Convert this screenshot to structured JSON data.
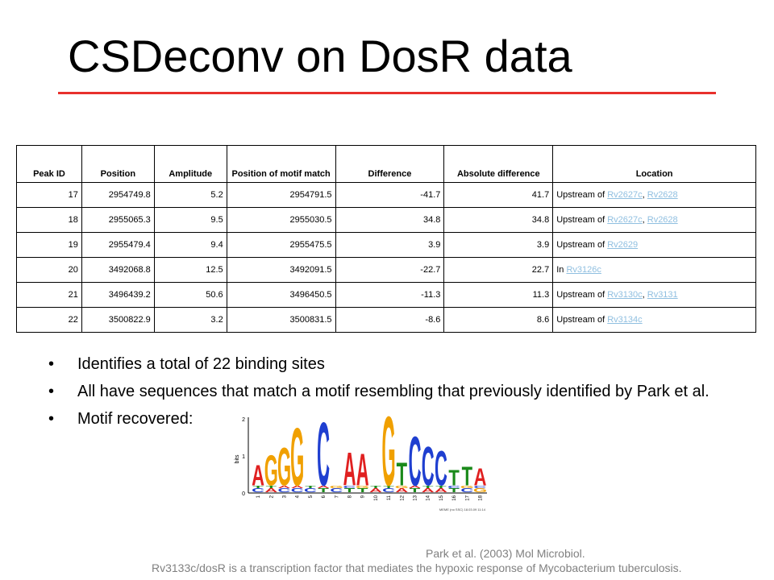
{
  "slide": {
    "title": "CSDeconv on DosR data"
  },
  "table": {
    "headers": [
      "Peak ID",
      "Position",
      "Amplitude",
      "Position of motif match",
      "Difference",
      "Absolute difference",
      "Location"
    ],
    "rows": [
      {
        "peak_id": "17",
        "position": "2954749.8",
        "amplitude": "5.2",
        "motif_pos": "2954791.5",
        "difference": "-41.7",
        "abs_difference": "41.7",
        "loc_prefix": "Upstream of",
        "genes": [
          "Rv2627c",
          "Rv2628"
        ]
      },
      {
        "peak_id": "18",
        "position": "2955065.3",
        "amplitude": "9.5",
        "motif_pos": "2955030.5",
        "difference": "34.8",
        "abs_difference": "34.8",
        "loc_prefix": "Upstream of",
        "genes": [
          "Rv2627c",
          "Rv2628"
        ]
      },
      {
        "peak_id": "19",
        "position": "2955479.4",
        "amplitude": "9.4",
        "motif_pos": "2955475.5",
        "difference": "3.9",
        "abs_difference": "3.9",
        "loc_prefix": "Upstream of",
        "genes": [
          "Rv2629"
        ]
      },
      {
        "peak_id": "20",
        "position": "3492068.8",
        "amplitude": "12.5",
        "motif_pos": "3492091.5",
        "difference": "-22.7",
        "abs_difference": "22.7",
        "loc_prefix": "In",
        "genes": [
          "Rv3126c"
        ]
      },
      {
        "peak_id": "21",
        "position": "3496439.2",
        "amplitude": "50.6",
        "motif_pos": "3496450.5",
        "difference": "-11.3",
        "abs_difference": "11.3",
        "loc_prefix": "Upstream of",
        "genes": [
          "Rv3130c",
          "Rv3131"
        ]
      },
      {
        "peak_id": "22",
        "position": "3500822.9",
        "amplitude": "3.2",
        "motif_pos": "3500831.5",
        "difference": "-8.6",
        "abs_difference": "8.6",
        "loc_prefix": "Upstream of",
        "genes": [
          "Rv3134c"
        ]
      }
    ]
  },
  "bullets": [
    "Identifies a total of 22 binding sites",
    "All have sequences that match a motif resembling that previously identified by Park et al.",
    "Motif recovered:"
  ],
  "logo": {
    "y_axis_label": "bits",
    "y_ticks": [
      "2",
      "1",
      "0"
    ],
    "positions": [
      "1",
      "2",
      "3",
      "4",
      "5",
      "6",
      "7",
      "8",
      "9",
      "10",
      "11",
      "12",
      "13",
      "14",
      "15",
      "16",
      "17",
      "18"
    ],
    "credit": "MEME (no SSC) 18.03.09 11:14",
    "main_letters": [
      "A",
      "G",
      "G",
      "G",
      "",
      "C",
      "",
      "A",
      "A",
      "",
      "G",
      "T",
      "C",
      "C",
      "C",
      "T",
      "T",
      "A"
    ],
    "colors": {
      "A": "#e02020",
      "C": "#1f3fd0",
      "G": "#f0a000",
      "T": "#1a8a1a"
    }
  },
  "references": [
    "Park et al. (2003) Mol Microbiol.",
    "Rv3133c/dosR is a transcription factor that mediates the hypoxic response of Mycobacterium tuberculosis."
  ]
}
